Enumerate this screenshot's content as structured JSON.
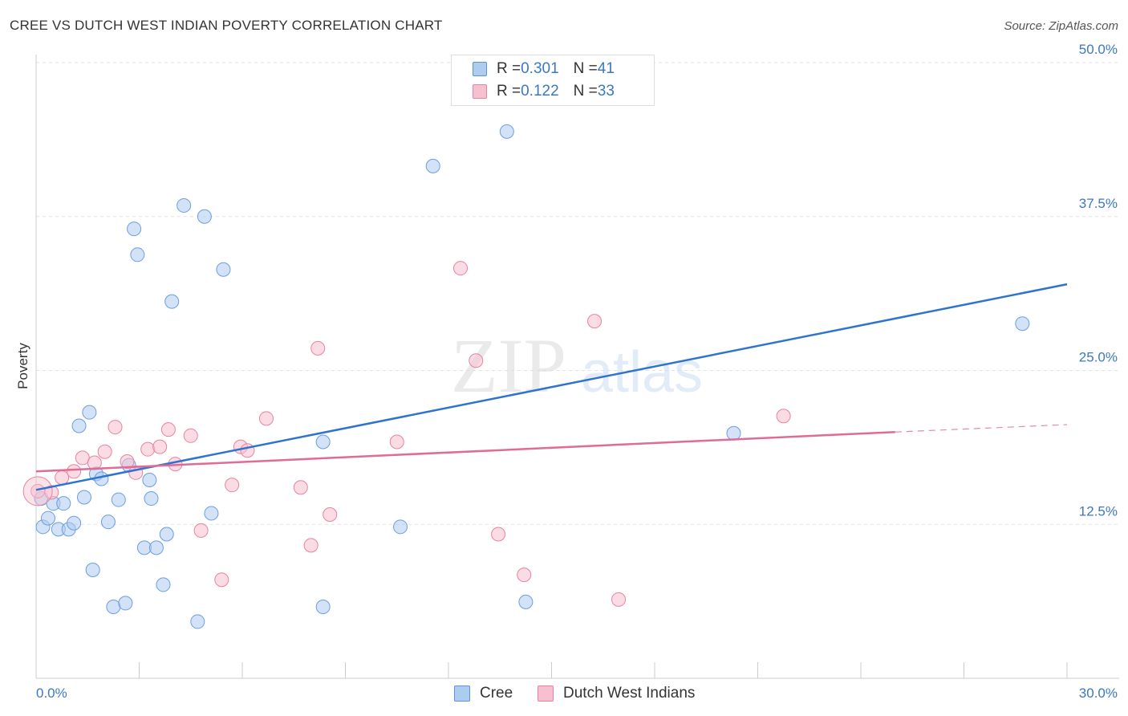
{
  "title": "CREE VS DUTCH WEST INDIAN POVERTY CORRELATION CHART",
  "source": "Source: ZipAtlas.com",
  "watermark": {
    "zip": "ZIP",
    "atlas": "atlas"
  },
  "legend_stats": [
    {
      "r_label": "R = ",
      "r_value": "0.301",
      "n_label": "N = ",
      "n_value": "41",
      "color": "#aecbf0",
      "stroke": "#5b93d6"
    },
    {
      "r_label": "R = ",
      "r_value": "0.122",
      "n_label": "N = ",
      "n_value": "33",
      "color": "#f7c0d0",
      "stroke": "#e8839f"
    }
  ],
  "chart_data": {
    "type": "scatter",
    "title": "CREE VS DUTCH WEST INDIAN POVERTY CORRELATION CHART",
    "xlabel": "",
    "ylabel": "Poverty",
    "xlim": [
      0,
      30
    ],
    "ylim": [
      0,
      50
    ],
    "x_tick_labels": [
      "0.0%",
      "30.0%"
    ],
    "y_ticks": [
      12.5,
      25.0,
      37.5,
      50.0
    ],
    "y_tick_labels": [
      "12.5%",
      "25.0%",
      "37.5%",
      "50.0%"
    ],
    "grid": true,
    "legend_position": "bottom",
    "series": [
      {
        "name": "Cree",
        "color": "#aecbf0",
        "stroke": "#6a9fdd",
        "line_color": "#2e74cf",
        "trend": {
          "x": [
            0,
            30
          ],
          "y": [
            15.3,
            32.0
          ]
        },
        "points": [
          [
            0.15,
            14.6
          ],
          [
            0.2,
            12.3
          ],
          [
            0.35,
            13.0
          ],
          [
            0.5,
            14.2
          ],
          [
            0.65,
            12.1
          ],
          [
            0.8,
            14.2
          ],
          [
            0.95,
            12.1
          ],
          [
            1.1,
            12.6
          ],
          [
            1.25,
            20.5
          ],
          [
            1.4,
            14.7
          ],
          [
            1.55,
            21.6
          ],
          [
            1.65,
            8.8
          ],
          [
            1.75,
            16.6
          ],
          [
            1.9,
            16.2
          ],
          [
            2.1,
            12.7
          ],
          [
            2.25,
            5.8
          ],
          [
            2.4,
            14.5
          ],
          [
            2.6,
            6.1
          ],
          [
            2.7,
            17.3
          ],
          [
            2.85,
            36.5
          ],
          [
            2.95,
            34.4
          ],
          [
            3.15,
            10.6
          ],
          [
            3.3,
            16.1
          ],
          [
            3.35,
            14.6
          ],
          [
            3.5,
            10.6
          ],
          [
            3.7,
            7.6
          ],
          [
            3.8,
            11.7
          ],
          [
            3.95,
            30.6
          ],
          [
            4.3,
            38.4
          ],
          [
            4.7,
            4.6
          ],
          [
            4.9,
            37.5
          ],
          [
            5.1,
            13.4
          ],
          [
            5.45,
            33.2
          ],
          [
            8.35,
            19.2
          ],
          [
            8.35,
            5.8
          ],
          [
            10.6,
            12.3
          ],
          [
            11.55,
            41.6
          ],
          [
            13.7,
            44.4
          ],
          [
            14.25,
            6.2
          ],
          [
            20.3,
            19.9
          ],
          [
            28.7,
            28.8
          ]
        ]
      },
      {
        "name": "Dutch West Indians",
        "color": "#f7c0d0",
        "stroke": "#e8839f",
        "line_color": "#e06b96",
        "trend": {
          "x": [
            0,
            25
          ],
          "y": [
            16.8,
            20.0
          ]
        },
        "trend_dashed": {
          "x": [
            25,
            30
          ],
          "y": [
            20.0,
            20.6
          ]
        },
        "points": [
          [
            0.05,
            15.2
          ],
          [
            0.45,
            15.1
          ],
          [
            0.75,
            16.3
          ],
          [
            1.1,
            16.8
          ],
          [
            1.35,
            17.9
          ],
          [
            1.7,
            17.5
          ],
          [
            2.0,
            18.4
          ],
          [
            2.3,
            20.4
          ],
          [
            2.65,
            17.6
          ],
          [
            2.9,
            16.7
          ],
          [
            3.25,
            18.6
          ],
          [
            3.6,
            18.8
          ],
          [
            3.85,
            20.2
          ],
          [
            4.05,
            17.4
          ],
          [
            4.5,
            19.7
          ],
          [
            4.8,
            12.0
          ],
          [
            5.4,
            8.0
          ],
          [
            5.7,
            15.7
          ],
          [
            5.95,
            18.8
          ],
          [
            6.15,
            18.5
          ],
          [
            6.7,
            21.1
          ],
          [
            7.7,
            15.5
          ],
          [
            8.0,
            10.8
          ],
          [
            8.2,
            26.8
          ],
          [
            8.55,
            13.3
          ],
          [
            10.5,
            19.2
          ],
          [
            12.35,
            33.3
          ],
          [
            12.8,
            25.8
          ],
          [
            13.45,
            11.7
          ],
          [
            14.2,
            8.4
          ],
          [
            16.25,
            29.0
          ],
          [
            16.95,
            6.4
          ],
          [
            21.75,
            21.3
          ]
        ]
      }
    ]
  }
}
